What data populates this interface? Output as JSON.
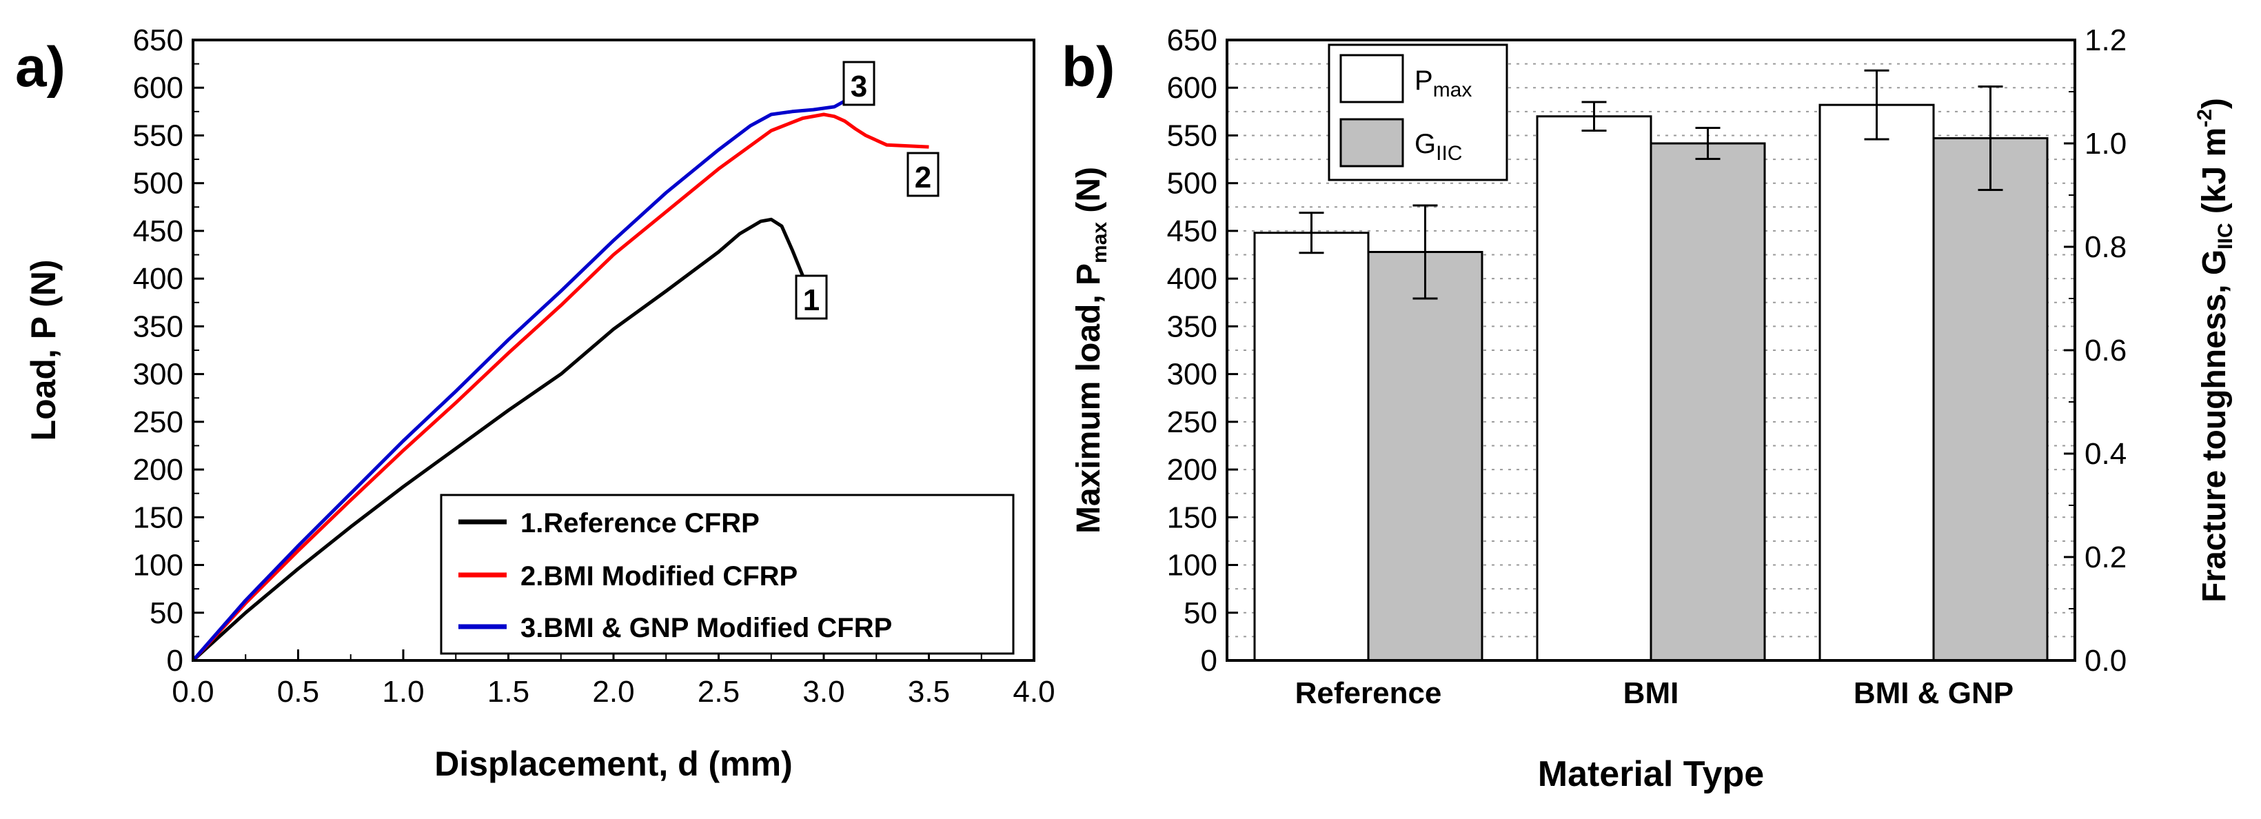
{
  "chart_data": [
    {
      "panel_label": "a)",
      "type": "line",
      "xlabel": "Displacement, d (mm)",
      "ylabel": "Load, P (N)",
      "xlim": [
        0,
        4.0
      ],
      "ylim": [
        0,
        650
      ],
      "xticks": [
        "0.0",
        "0.5",
        "1.0",
        "1.5",
        "2.0",
        "2.5",
        "3.0",
        "3.5",
        "4.0"
      ],
      "yticks": [
        "0",
        "50",
        "100",
        "150",
        "200",
        "250",
        "300",
        "350",
        "400",
        "450",
        "500",
        "550",
        "600",
        "650"
      ],
      "legend_position": "bottom-right",
      "series": [
        {
          "name": "1.Reference CFRP",
          "color": "#000000",
          "marker_label": "1",
          "x": [
            0,
            0.25,
            0.5,
            0.75,
            1.0,
            1.25,
            1.5,
            1.75,
            2.0,
            2.25,
            2.5,
            2.6,
            2.7,
            2.75,
            2.8,
            2.85,
            2.9
          ],
          "y": [
            0,
            50,
            96,
            140,
            182,
            222,
            262,
            300,
            347,
            387,
            428,
            447,
            460,
            462,
            455,
            430,
            403
          ]
        },
        {
          "name": "2.BMI Modified CFRP",
          "color": "#ff0000",
          "marker_label": "2",
          "x": [
            0,
            0.25,
            0.5,
            0.75,
            1.0,
            1.25,
            1.5,
            1.75,
            2.0,
            2.25,
            2.5,
            2.75,
            2.9,
            3.0,
            3.05,
            3.1,
            3.15,
            3.2,
            3.3,
            3.5
          ],
          "y": [
            0,
            60,
            115,
            168,
            220,
            270,
            322,
            372,
            425,
            470,
            515,
            555,
            568,
            572,
            570,
            565,
            557,
            550,
            540,
            538
          ]
        },
        {
          "name": "3.BMI & GNP Modified CFRP",
          "color": "#0000cc",
          "marker_label": "3",
          "x": [
            0,
            0.25,
            0.5,
            0.75,
            1.0,
            1.25,
            1.5,
            1.75,
            2.0,
            2.25,
            2.5,
            2.65,
            2.75,
            2.85,
            2.95,
            3.05,
            3.1
          ],
          "y": [
            0,
            63,
            120,
            175,
            230,
            282,
            336,
            387,
            440,
            490,
            535,
            560,
            572,
            575,
            577,
            580,
            586
          ]
        }
      ]
    },
    {
      "panel_label": "b)",
      "type": "bar",
      "xlabel": "Material Type",
      "ylabel": "Maximum load, P",
      "ylabel_sub": "max",
      "ylabel_unit": " (N)",
      "y2label": "Fracture toughness, G",
      "y2label_sub": "IIC",
      "y2label_unit_pre": " (kJ m",
      "y2label_sup": "-2",
      "y2label_unit_post": ")",
      "categories": [
        "Reference",
        "BMI",
        "BMI & GNP"
      ],
      "ylim": [
        0,
        650
      ],
      "y2lim": [
        0,
        1.2
      ],
      "yticks": [
        "0",
        "50",
        "100",
        "150",
        "200",
        "250",
        "300",
        "350",
        "400",
        "450",
        "500",
        "550",
        "600",
        "650"
      ],
      "y2ticks": [
        "0.0",
        "0.2",
        "0.4",
        "0.6",
        "0.8",
        "1.0",
        "1.2"
      ],
      "legend_position": "top-left",
      "series": [
        {
          "name": "P",
          "name_sub": "max",
          "axis": "left",
          "color": "#ffffff",
          "values": [
            448,
            570,
            582
          ],
          "errors": [
            21,
            15,
            36
          ]
        },
        {
          "name": "G",
          "name_sub": "IIC",
          "axis": "right",
          "color": "#c0c0c0",
          "values": [
            0.79,
            1.0,
            1.01
          ],
          "errors": [
            0.09,
            0.03,
            0.1
          ]
        }
      ]
    }
  ]
}
